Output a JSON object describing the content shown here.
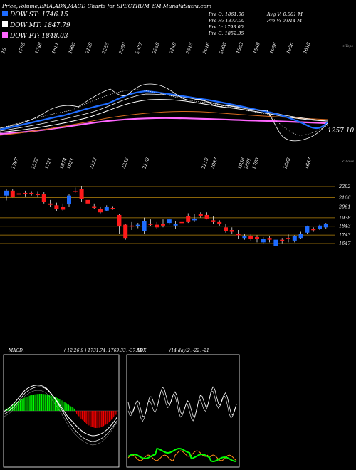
{
  "header": {
    "title": "Price,Volume,EMA,ADX,MACD Charts for SPECTRUM_SM MunafaSutra.com",
    "dow_st": "DOW ST: 1746.15",
    "dow_mt": "DOW MT: 1847.79",
    "dow_pt": "DOW PT: 1848.03",
    "colors": {
      "st": "#1e6cff",
      "mt": "#ffffff",
      "pt": "#ff66ff"
    }
  },
  "prev": {
    "open": "Pre O: 1861.00",
    "high": "Pre H: 1873.00",
    "low": "Pre L: 1793.00",
    "close": "Pre C: 1852.35",
    "avg_v": "Avg V: 0.001 M",
    "pre_v": "Pre V: 0.014 M"
  },
  "top_labels": [
    "18",
    "1795",
    "1748",
    "1811",
    "1990",
    "2129",
    "2285",
    "2290",
    "2377",
    "2249",
    "2149",
    "2515",
    "2016",
    "2008",
    "1883",
    "1848",
    "1996",
    "1956",
    "1618"
  ],
  "bottom_labels": [
    "1767",
    "1522",
    "1721",
    "1874",
    "1921",
    "2122",
    "2255",
    "2176",
    "2115",
    "2097",
    "1938",
    "1891",
    "1790",
    "1683",
    "1667"
  ],
  "right_top_label": "< Tops",
  "right_bottom_label": "< Lows",
  "ema_value_label": "1257.10",
  "price_levels": [
    "2292",
    "2166",
    "2061",
    "1938",
    "1843",
    "1743",
    "1647"
  ],
  "macd_panel": {
    "label": "MACD:",
    "params": "( 12,26,9 ) 1731.74, 1769.33, -37.59",
    "colors": {
      "pos": "#00ff00",
      "neg": "#ff0000"
    }
  },
  "adx_panel": {
    "label": "ADX",
    "params": "(14 day)2, -22, -21",
    "colors": {
      "plus": "#00ff00",
      "minus": "#ff8c1a",
      "adx": "#ffffff"
    }
  },
  "chart_data": {
    "type": "candlestick",
    "title": "Price,Volume,EMA,ADX,MACD Charts for SPECTRUM_SM MunafaSutra.com",
    "y_levels": [
      2292,
      2166,
      2061,
      1938,
      1843,
      1743,
      1647
    ],
    "candles": [
      {
        "o": 2190,
        "h": 2260,
        "l": 2135,
        "c": 2245,
        "color": "blue"
      },
      {
        "o": 2245,
        "h": 2260,
        "l": 2170,
        "c": 2175,
        "color": "red"
      },
      {
        "o": 2200,
        "h": 2250,
        "l": 2150,
        "c": 2215,
        "color": "red"
      },
      {
        "o": 2220,
        "h": 2245,
        "l": 2180,
        "c": 2210,
        "color": "red"
      },
      {
        "o": 2220,
        "h": 2240,
        "l": 2190,
        "c": 2205,
        "color": "red"
      },
      {
        "o": 2210,
        "h": 2240,
        "l": 2170,
        "c": 2195,
        "color": "red"
      },
      {
        "o": 2210,
        "h": 2230,
        "l": 2100,
        "c": 2120,
        "color": "red"
      },
      {
        "o": 2100,
        "h": 2140,
        "l": 2060,
        "c": 2085,
        "color": "red"
      },
      {
        "o": 2080,
        "h": 2110,
        "l": 2010,
        "c": 2040,
        "color": "red"
      },
      {
        "o": 2060,
        "h": 2100,
        "l": 2010,
        "c": 2030,
        "color": "red"
      },
      {
        "o": 2090,
        "h": 2210,
        "l": 2060,
        "c": 2190,
        "color": "blue"
      },
      {
        "o": 2240,
        "h": 2280,
        "l": 2220,
        "c": 2230,
        "color": "red"
      },
      {
        "o": 2260,
        "h": 2300,
        "l": 2120,
        "c": 2150,
        "color": "red"
      },
      {
        "o": 2140,
        "h": 2160,
        "l": 2070,
        "c": 2100,
        "color": "red"
      },
      {
        "o": 2070,
        "h": 2100,
        "l": 2040,
        "c": 2050,
        "color": "red"
      },
      {
        "o": 2040,
        "h": 2060,
        "l": 1990,
        "c": 2000,
        "color": "red"
      },
      {
        "o": 2020,
        "h": 2080,
        "l": 2010,
        "c": 2060,
        "color": "blue"
      },
      {
        "o": 2050,
        "h": 2070,
        "l": 2030,
        "c": 2040,
        "color": "red"
      },
      {
        "o": 1970,
        "h": 1980,
        "l": 1760,
        "c": 1840,
        "color": "red"
      },
      {
        "o": 1860,
        "h": 1870,
        "l": 1690,
        "c": 1710,
        "color": "red"
      },
      {
        "o": 1850,
        "h": 1890,
        "l": 1800,
        "c": 1840,
        "color": "red"
      },
      {
        "o": 1850,
        "h": 1880,
        "l": 1820,
        "c": 1860,
        "color": "blue"
      },
      {
        "o": 1790,
        "h": 1940,
        "l": 1760,
        "c": 1900,
        "color": "blue"
      },
      {
        "o": 1870,
        "h": 1920,
        "l": 1840,
        "c": 1860,
        "color": "red"
      },
      {
        "o": 1860,
        "h": 1890,
        "l": 1810,
        "c": 1830,
        "color": "red"
      },
      {
        "o": 1870,
        "h": 1920,
        "l": 1830,
        "c": 1850,
        "color": "red"
      },
      {
        "o": 1880,
        "h": 1930,
        "l": 1860,
        "c": 1920,
        "color": "blue"
      },
      {
        "o": 1850,
        "h": 1900,
        "l": 1810,
        "c": 1870,
        "color": "blue"
      },
      {
        "o": 1880,
        "h": 1910,
        "l": 1860,
        "c": 1890,
        "color": "red"
      },
      {
        "o": 1890,
        "h": 1990,
        "l": 1880,
        "c": 1960,
        "color": "red"
      },
      {
        "o": 1910,
        "h": 1980,
        "l": 1890,
        "c": 1930,
        "color": "blue"
      },
      {
        "o": 1960,
        "h": 2000,
        "l": 1940,
        "c": 1980,
        "color": "red"
      },
      {
        "o": 1970,
        "h": 2000,
        "l": 1920,
        "c": 1930,
        "color": "red"
      },
      {
        "o": 1910,
        "h": 1960,
        "l": 1870,
        "c": 1890,
        "color": "red"
      },
      {
        "o": 1890,
        "h": 1910,
        "l": 1850,
        "c": 1870,
        "color": "red"
      },
      {
        "o": 1830,
        "h": 1870,
        "l": 1770,
        "c": 1790,
        "color": "red"
      },
      {
        "o": 1800,
        "h": 1830,
        "l": 1760,
        "c": 1780,
        "color": "red"
      },
      {
        "o": 1760,
        "h": 1800,
        "l": 1700,
        "c": 1740,
        "color": "red"
      },
      {
        "o": 1730,
        "h": 1760,
        "l": 1690,
        "c": 1710,
        "color": "blue"
      },
      {
        "o": 1730,
        "h": 1750,
        "l": 1680,
        "c": 1700,
        "color": "red"
      },
      {
        "o": 1700,
        "h": 1740,
        "l": 1660,
        "c": 1720,
        "color": "red"
      },
      {
        "o": 1700,
        "h": 1720,
        "l": 1650,
        "c": 1660,
        "color": "blue"
      },
      {
        "o": 1690,
        "h": 1730,
        "l": 1660,
        "c": 1710,
        "color": "red"
      },
      {
        "o": 1690,
        "h": 1710,
        "l": 1600,
        "c": 1620,
        "color": "blue"
      },
      {
        "o": 1680,
        "h": 1710,
        "l": 1650,
        "c": 1690,
        "color": "red"
      },
      {
        "o": 1710,
        "h": 1750,
        "l": 1660,
        "c": 1700,
        "color": "red"
      },
      {
        "o": 1680,
        "h": 1740,
        "l": 1660,
        "c": 1730,
        "color": "blue"
      },
      {
        "o": 1710,
        "h": 1780,
        "l": 1700,
        "c": 1760,
        "color": "blue"
      },
      {
        "o": 1770,
        "h": 1850,
        "l": 1760,
        "c": 1840,
        "color": "blue"
      },
      {
        "o": 1800,
        "h": 1830,
        "l": 1780,
        "c": 1810,
        "color": "red"
      },
      {
        "o": 1810,
        "h": 1860,
        "l": 1800,
        "c": 1850,
        "color": "blue"
      },
      {
        "o": 1830,
        "h": 1880,
        "l": 1810,
        "c": 1870,
        "color": "blue"
      }
    ]
  }
}
